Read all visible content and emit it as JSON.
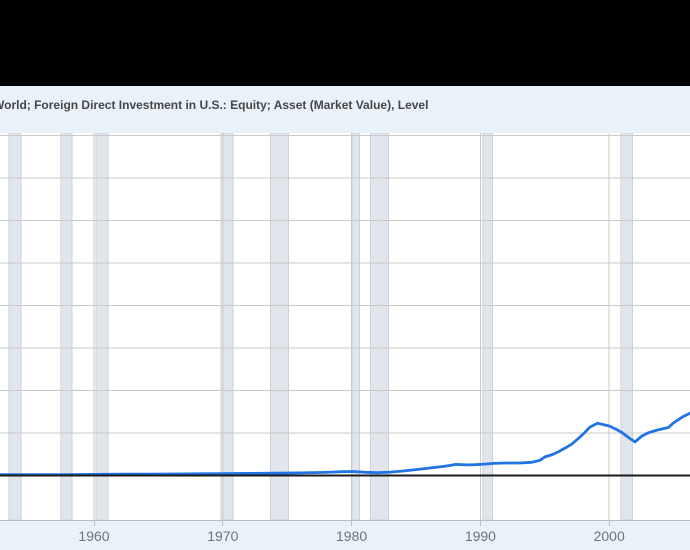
{
  "window": {
    "top_bar_color": "#000000"
  },
  "header": {
    "title": "World; Foreign Direct Investment in U.S.: Equity; Asset (Market Value), Level"
  },
  "chart_data": {
    "type": "line",
    "title": "World; Foreign Direct Investment in U.S.: Equity; Asset (Market Value), Level",
    "legend": "none",
    "grid": true,
    "x_ticks": [
      {
        "year": 1960,
        "label": "1960"
      },
      {
        "year": 1970,
        "label": "1970"
      },
      {
        "year": 1980,
        "label": "1980"
      },
      {
        "year": 1990,
        "label": "1990"
      },
      {
        "year": 2000,
        "label": "2000"
      }
    ],
    "x_range_years": [
      1952.7,
      2006.3
    ],
    "y_axis": {
      "tick_labels_visible": false,
      "note": "Y-axis tick labels are cropped off the left edge of the screenshot; series values are expressed in horizontal-gridline divisions above the black zero baseline.",
      "gridline_divisions": [
        0,
        1,
        2,
        3,
        4,
        5,
        6,
        7,
        8
      ],
      "ylim_divisions": [
        -1.05,
        8.06
      ],
      "zero_baseline": true
    },
    "series": [
      {
        "name": "World; Foreign Direct Investment in U.S.: Equity; Asset (Market Value), Level",
        "color": "#2273e3",
        "points": [
          [
            1952.7,
            0.02
          ],
          [
            1954,
            0.02
          ],
          [
            1956,
            0.02
          ],
          [
            1958,
            0.02
          ],
          [
            1960,
            0.025
          ],
          [
            1962,
            0.03
          ],
          [
            1964,
            0.03
          ],
          [
            1966,
            0.035
          ],
          [
            1968,
            0.04
          ],
          [
            1970,
            0.045
          ],
          [
            1972,
            0.05
          ],
          [
            1974,
            0.055
          ],
          [
            1976,
            0.06
          ],
          [
            1977.5,
            0.07
          ],
          [
            1978.5,
            0.08
          ],
          [
            1979.2,
            0.09
          ],
          [
            1980.1,
            0.095
          ],
          [
            1981.1,
            0.075
          ],
          [
            1982,
            0.065
          ],
          [
            1983,
            0.08
          ],
          [
            1984,
            0.105
          ],
          [
            1985,
            0.14
          ],
          [
            1986,
            0.175
          ],
          [
            1987,
            0.21
          ],
          [
            1987.6,
            0.235
          ],
          [
            1988.1,
            0.26
          ],
          [
            1988.6,
            0.255
          ],
          [
            1989.1,
            0.25
          ],
          [
            1989.6,
            0.255
          ],
          [
            1990,
            0.26
          ],
          [
            1990.5,
            0.27
          ],
          [
            1991,
            0.285
          ],
          [
            1992,
            0.295
          ],
          [
            1993,
            0.295
          ],
          [
            1994,
            0.31
          ],
          [
            1994.6,
            0.355
          ],
          [
            1995,
            0.435
          ],
          [
            1995.6,
            0.495
          ],
          [
            1996.1,
            0.565
          ],
          [
            1996.6,
            0.65
          ],
          [
            1997.1,
            0.74
          ],
          [
            1997.6,
            0.87
          ],
          [
            1998.1,
            1.01
          ],
          [
            1998.5,
            1.14
          ],
          [
            1999.1,
            1.23
          ],
          [
            1999.5,
            1.2
          ],
          [
            2000,
            1.165
          ],
          [
            2000.5,
            1.095
          ],
          [
            2001,
            1.01
          ],
          [
            2001.5,
            0.895
          ],
          [
            2002,
            0.79
          ],
          [
            2002.5,
            0.92
          ],
          [
            2003,
            1.0
          ],
          [
            2003.5,
            1.05
          ],
          [
            2004,
            1.09
          ],
          [
            2004.6,
            1.13
          ],
          [
            2005,
            1.24
          ],
          [
            2005.7,
            1.38
          ],
          [
            2006.3,
            1.47
          ]
        ]
      }
    ],
    "recession_bands_years": [
      [
        1953.4,
        1954.35
      ],
      [
        1957.45,
        1958.3
      ],
      [
        1960.15,
        1961.1
      ],
      [
        1969.85,
        1970.8
      ],
      [
        1973.7,
        1975.1
      ],
      [
        1980.05,
        1980.6
      ],
      [
        1981.45,
        1982.85
      ],
      [
        1990.2,
        1990.95
      ],
      [
        2000.9,
        2001.8
      ]
    ],
    "colors": {
      "line": "#2273e3",
      "zero_line": "#1b1b1b",
      "gridline": "#c9c9c9",
      "recession_band": "#e0e6ec",
      "recession_band_edge": "#cad2da",
      "plot_bg": "#ffffff",
      "frame_bg": "#e9f1f9",
      "axis_label": "#6e7378",
      "title_text": "#474747",
      "top_bar": "#000000"
    }
  }
}
